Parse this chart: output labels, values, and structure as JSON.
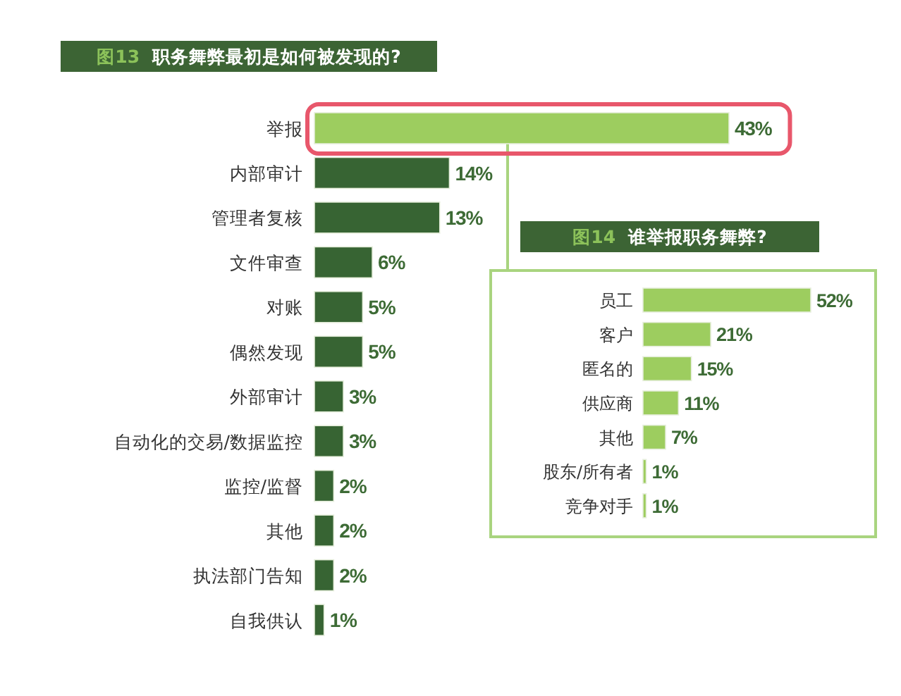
{
  "chart_data": [
    {
      "type": "bar",
      "orientation": "horizontal",
      "title": "图13 职务舞弊最初是如何被发现的?",
      "categories": [
        "举报",
        "内部审计",
        "管理者复核",
        "文件审查",
        "对账",
        "偶然发现",
        "外部审计",
        "自动化的交易/数据监控",
        "监控/监督",
        "其他",
        "执法部门告知",
        "自我供认"
      ],
      "values": [
        43,
        14,
        13,
        6,
        5,
        5,
        3,
        3,
        2,
        2,
        2,
        1
      ],
      "colors": [
        "#9dcd5f",
        "#376433",
        "#376433",
        "#376433",
        "#376433",
        "#376433",
        "#376433",
        "#376433",
        "#376433",
        "#376433",
        "#376433",
        "#376433"
      ],
      "value_labels": [
        "43%",
        "14%",
        "13%",
        "6%",
        "5%",
        "5%",
        "3%",
        "3%",
        "2%",
        "2%",
        "2%",
        "1%"
      ]
    },
    {
      "type": "bar",
      "orientation": "horizontal",
      "title": "图14 谁举报职务舞弊?",
      "categories": [
        "员工",
        "客户",
        "匿名的",
        "供应商",
        "其他",
        "股东/所有者",
        "竞争对手"
      ],
      "values": [
        52,
        21,
        15,
        11,
        7,
        1,
        1
      ],
      "color": "#9dcd5f",
      "value_labels": [
        "52%",
        "21%",
        "15%",
        "11%",
        "7%",
        "1%",
        "1%"
      ]
    }
  ]
}
